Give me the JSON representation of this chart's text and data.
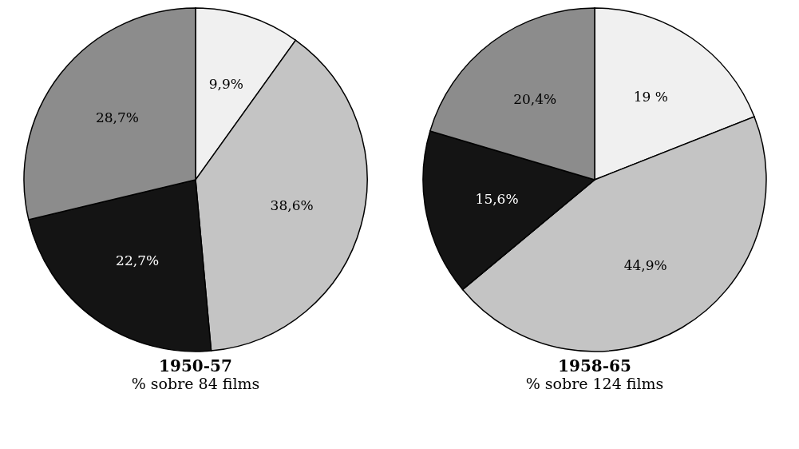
{
  "chart_data": [
    {
      "type": "pie",
      "title": "1950-57",
      "subtitle": "% sobre 84 films",
      "categories": [
        null,
        null,
        null,
        null
      ],
      "values": [
        9.9,
        38.6,
        22.7,
        28.7
      ],
      "value_labels": [
        "9,9%",
        "38,6%",
        "22,7%",
        "28,7%"
      ],
      "colors": [
        "#f0f0f0",
        "#c4c4c4",
        "#141414",
        "#8c8c8c"
      ]
    },
    {
      "type": "pie",
      "title": "1958-65",
      "subtitle": "% sobre 124 films",
      "categories": [
        null,
        null,
        null,
        null
      ],
      "values": [
        19,
        44.9,
        15.6,
        20.4
      ],
      "value_labels": [
        "19 %",
        "44,9%",
        "15,6%",
        "20,4%"
      ],
      "colors": [
        "#f0f0f0",
        "#c4c4c4",
        "#141414",
        "#8c8c8c"
      ]
    }
  ]
}
